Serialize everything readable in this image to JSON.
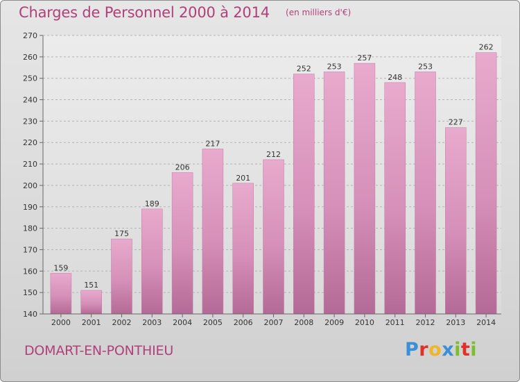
{
  "header": {
    "title": "Charges de Personnel 2000 à 2014",
    "subtitle": "(en milliers d'€)"
  },
  "footer": {
    "commune": "DOMART-EN-PONTHIEU",
    "brand_letters": [
      "P",
      "r",
      "o",
      "x",
      "i",
      "t",
      "i"
    ],
    "brand_colors": [
      "#3a8fd6",
      "#e0302a",
      "#f0b62a",
      "#3a8fd6",
      "#7cbf2e",
      "#e0302a",
      "#7cbf2e"
    ]
  },
  "chart_data": {
    "type": "bar",
    "title": "Charges de Personnel 2000 à 2014",
    "subtitle": "(en milliers d'€)",
    "xlabel": "",
    "ylabel": "",
    "categories": [
      "2000",
      "2001",
      "2002",
      "2003",
      "2004",
      "2005",
      "2006",
      "2007",
      "2008",
      "2009",
      "2010",
      "2011",
      "2012",
      "2013",
      "2014"
    ],
    "values": [
      159,
      151,
      175,
      189,
      206,
      217,
      201,
      212,
      252,
      253,
      257,
      248,
      253,
      227,
      262
    ],
    "ylim": [
      140,
      270
    ],
    "yticks": [
      140,
      150,
      160,
      170,
      180,
      190,
      200,
      210,
      220,
      230,
      240,
      250,
      260,
      270
    ],
    "grid": "horizontal-dashed",
    "bar_color": "#d98fb8",
    "data_labels": true
  }
}
